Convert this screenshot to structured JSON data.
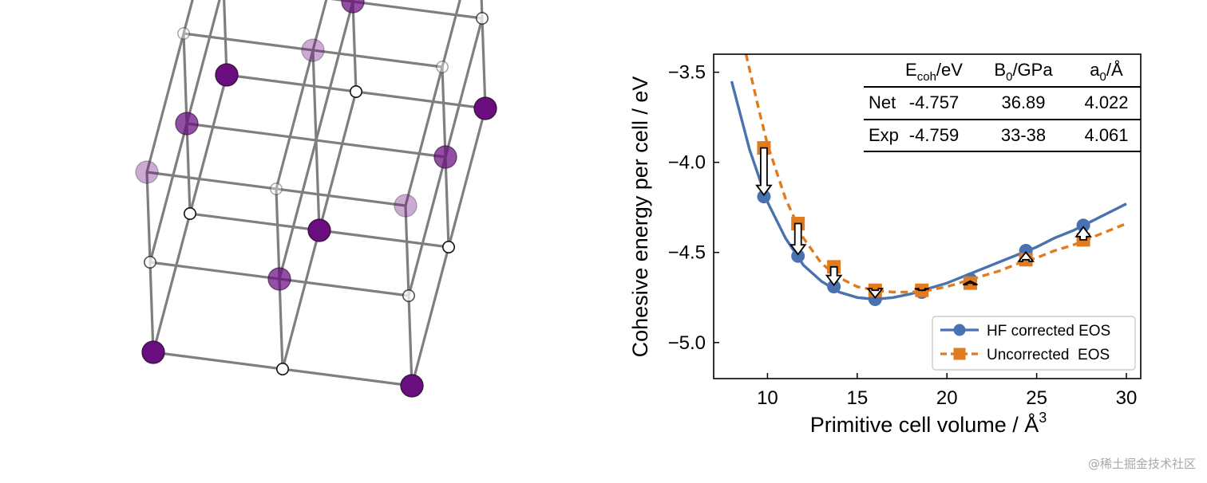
{
  "lattice": {
    "description_icon": "rocksalt-lattice-icon",
    "colors": {
      "edge": "#7f7f7f",
      "cation": "#6a0d7e",
      "anion": "#ffffff"
    }
  },
  "chart_data": {
    "type": "line",
    "xlabel": "Primitive cell volume / Å",
    "xlabel_sup": "3",
    "ylabel": "Cohesive energy per cell / eV",
    "xlim": [
      7,
      30.8
    ],
    "ylim": [
      -5.2,
      -3.4
    ],
    "xticks": [
      10,
      15,
      20,
      25,
      30
    ],
    "xtick_labels": [
      "10",
      "15",
      "20",
      "25",
      "30"
    ],
    "yticks": [
      -5.0,
      -4.5,
      -4.0,
      -3.5
    ],
    "ytick_labels": [
      "−5.0",
      "−4.5",
      "−4.0",
      "−3.5"
    ],
    "grid": false,
    "legend": {
      "placement": "lower-right"
    },
    "series": [
      {
        "name": "HF corrected EOS",
        "color": "#4a72b0",
        "marker": "circle",
        "linestyle": "solid",
        "points": {
          "x": [
            9.8,
            11.7,
            13.7,
            16.0,
            18.6,
            21.3,
            24.4,
            27.6
          ],
          "y": [
            -4.19,
            -4.52,
            -4.69,
            -4.76,
            -4.72,
            -4.65,
            -4.49,
            -4.35
          ]
        },
        "curve": {
          "x": [
            8.0,
            9.0,
            10.0,
            11.0,
            12.0,
            13.0,
            14.0,
            15.0,
            16.0,
            17.0,
            18.0,
            19.0,
            20.0,
            21.0,
            22.0,
            23.0,
            24.0,
            25.0,
            26.0,
            27.0,
            28.0,
            29.0,
            30.0
          ],
          "y": [
            -3.55,
            -3.93,
            -4.22,
            -4.42,
            -4.57,
            -4.66,
            -4.72,
            -4.75,
            -4.76,
            -4.75,
            -4.73,
            -4.7,
            -4.67,
            -4.63,
            -4.59,
            -4.55,
            -4.51,
            -4.47,
            -4.42,
            -4.38,
            -4.33,
            -4.28,
            -4.23
          ]
        }
      },
      {
        "name": "Uncorrected  EOS",
        "color": "#e07b20",
        "marker": "square",
        "linestyle": "dashed",
        "points": {
          "x": [
            9.8,
            11.7,
            13.7,
            16.0,
            18.6,
            21.3,
            24.4,
            27.6
          ],
          "y": [
            -3.92,
            -4.34,
            -4.58,
            -4.71,
            -4.71,
            -4.67,
            -4.54,
            -4.43
          ]
        },
        "curve": {
          "x": [
            8.8,
            9.5,
            10.0,
            11.0,
            12.0,
            13.0,
            14.0,
            15.0,
            16.0,
            17.0,
            18.0,
            19.0,
            20.0,
            21.0,
            22.0,
            23.0,
            24.0,
            25.0,
            26.0,
            27.0,
            28.0,
            29.0,
            30.0
          ],
          "y": [
            -3.4,
            -3.7,
            -3.9,
            -4.2,
            -4.42,
            -4.56,
            -4.64,
            -4.69,
            -4.71,
            -4.72,
            -4.72,
            -4.71,
            -4.69,
            -4.66,
            -4.63,
            -4.6,
            -4.56,
            -4.53,
            -4.49,
            -4.46,
            -4.42,
            -4.38,
            -4.34
          ]
        }
      }
    ],
    "table": {
      "headers": [
        "",
        "E",
        "B",
        "a"
      ],
      "header_main": [
        "E",
        "B",
        "a"
      ],
      "header_sub": [
        "coh",
        "0",
        "0"
      ],
      "header_unit": [
        "/eV",
        "/GPa",
        "/Å"
      ],
      "rows": [
        [
          "Net",
          "-4.757",
          "36.89",
          "4.022"
        ],
        [
          "Exp",
          "-4.759",
          "33-38",
          "4.061"
        ]
      ]
    }
  },
  "watermark": "@稀土掘金技术社区"
}
